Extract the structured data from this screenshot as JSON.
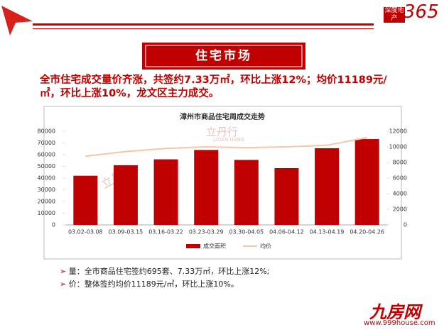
{
  "header": {
    "logo_top": "深度地产",
    "logo_num": "365",
    "section": "住宅市场"
  },
  "headline": "全市住宅成交量价齐涨，共签约7.33万㎡，环比上涨12%；均价11189元/㎡，环比上涨10%，龙文区主力成交。",
  "bullets": [
    "量：全市商品住宅签约695套、7.33万㎡，环比上涨12%;",
    "价：整体签约均价11189元/㎡，环比上涨10%。"
  ],
  "watermark": {
    "name": "立丹行",
    "latin": "LIDAN HANG"
  },
  "footer": {
    "brand": "九房网",
    "url": "www.999house.com"
  },
  "chart_data": {
    "type": "bar",
    "title": "漳州市商品住宅周成交走势",
    "categories": [
      "03.02-03.08",
      "03.09-03.15",
      "03.16-03.22",
      "03.23-03.29",
      "03.30-04.05",
      "04.06-04.12",
      "04.13-04.19",
      "04.20-04.26"
    ],
    "series": [
      {
        "name": "成交面积",
        "color": "#c00000",
        "values": [
          42000,
          51000,
          56000,
          64000,
          55500,
          48500,
          65500,
          73300
        ]
      },
      {
        "name": "均价",
        "color": "#f4c7a8",
        "type": "line",
        "axis": "y2",
        "values": [
          8800,
          9400,
          9800,
          10000,
          9900,
          10000,
          10200,
          11189
        ]
      }
    ],
    "ylim": [
      0,
      80000
    ],
    "yticks": [
      0,
      10000,
      20000,
      30000,
      40000,
      50000,
      60000,
      70000,
      80000
    ],
    "y2lim": [
      0,
      12000
    ],
    "y2ticks": [
      0,
      2000,
      4000,
      6000,
      8000,
      10000,
      12000
    ],
    "legend": "bottom",
    "grid": false
  }
}
